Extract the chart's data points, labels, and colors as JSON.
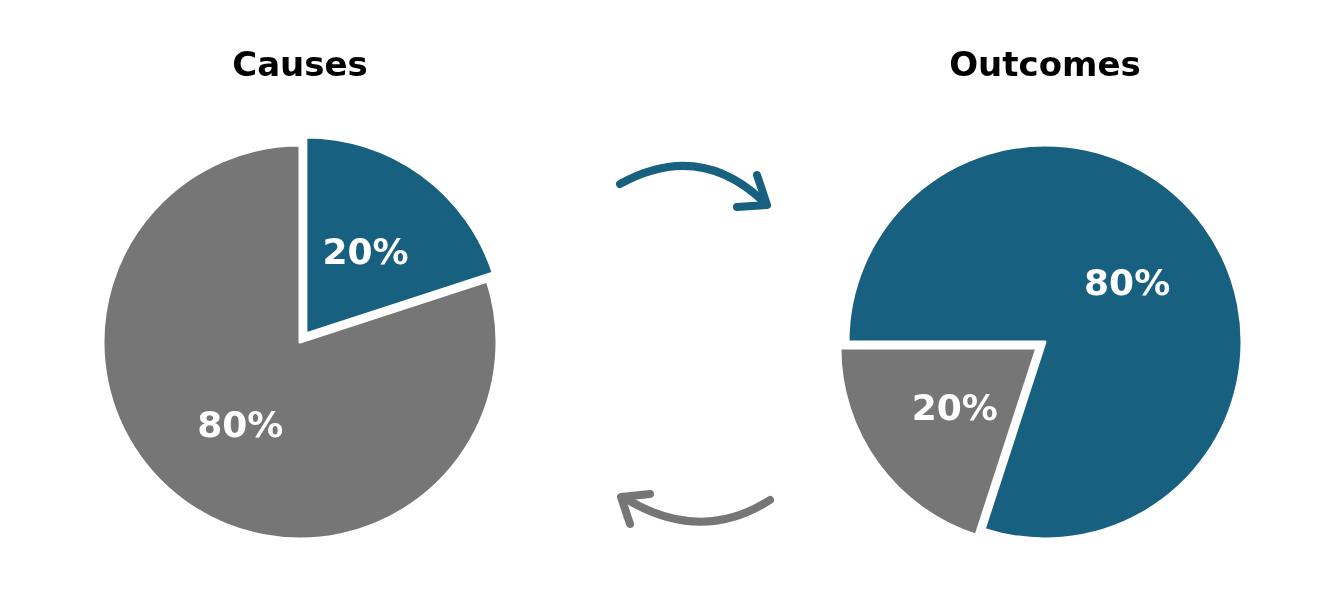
{
  "chart_data": [
    {
      "type": "pie",
      "title": "Causes",
      "categories": [
        null,
        null
      ],
      "values": [
        20,
        80
      ],
      "colors": [
        "#17607f",
        "#767676"
      ],
      "value_labels": [
        "20%",
        "80%"
      ]
    },
    {
      "type": "pie",
      "title": "Outcomes",
      "categories": [
        null,
        null
      ],
      "values": [
        80,
        20
      ],
      "colors": [
        "#17607f",
        "#767676"
      ],
      "value_labels": [
        "80%",
        "20%"
      ]
    }
  ]
}
